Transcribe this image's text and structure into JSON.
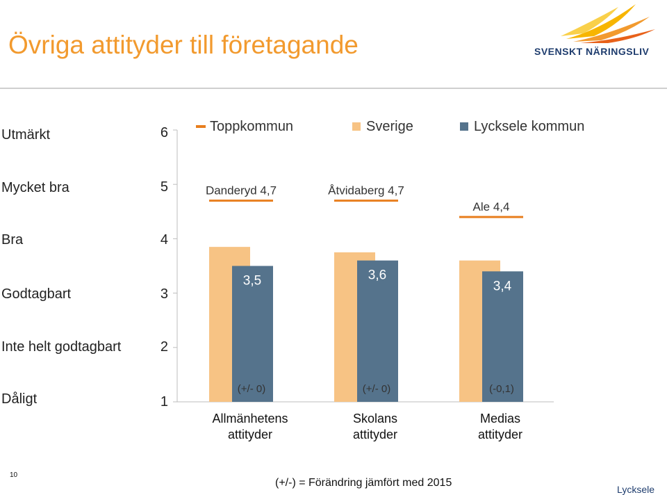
{
  "title": "Övriga attityder till företagande",
  "logo": {
    "text": "SVENSKT NÄRINGSLIV",
    "icon": "flame-logo-icon"
  },
  "scale_labels": [
    {
      "value": 6,
      "label": "Utmärkt"
    },
    {
      "value": 5,
      "label": "Mycket bra"
    },
    {
      "value": 4,
      "label": "Bra"
    },
    {
      "value": 3,
      "label": "Godtagbart"
    },
    {
      "value": 2,
      "label": "Inte helt godtagbart"
    },
    {
      "value": 1,
      "label": "Dåligt"
    }
  ],
  "footnote": "(+/-) = Förändring jämfört med 2015",
  "page_number": "10",
  "corner_label": "Lycksele",
  "colors": {
    "sverige": "#f7c384",
    "lycksele": "#55738c",
    "toppkommun": "#e87e1e",
    "title": "#f29a2e"
  },
  "chart_data": {
    "type": "bar",
    "title": "Övriga attityder till företagande",
    "ylim": [
      1,
      6
    ],
    "yticks": [
      1,
      2,
      3,
      4,
      5,
      6
    ],
    "categories": [
      "Allmänhetens attityder",
      "Skolans attityder",
      "Medias attityder"
    ],
    "series": [
      {
        "name": "Sverige",
        "values": [
          3.85,
          3.75,
          3.6
        ]
      },
      {
        "name": "Lycksele kommun",
        "values": [
          3.5,
          3.6,
          3.4
        ],
        "labels": [
          "3,5",
          "3,6",
          "3,4"
        ]
      }
    ],
    "toppkommun": {
      "name": "Toppkommun",
      "values": [
        4.7,
        4.7,
        4.4
      ],
      "labels": [
        "Danderyd 4,7",
        "Åtvidaberg 4,7",
        "Ale 4,4"
      ]
    },
    "change_labels": [
      "(+/- 0)",
      "(+/- 0)",
      "(-0,1)"
    ],
    "legend": [
      "Toppkommun",
      "Sverige",
      "Lycksele kommun"
    ],
    "legend_position": "top",
    "grid": false
  }
}
